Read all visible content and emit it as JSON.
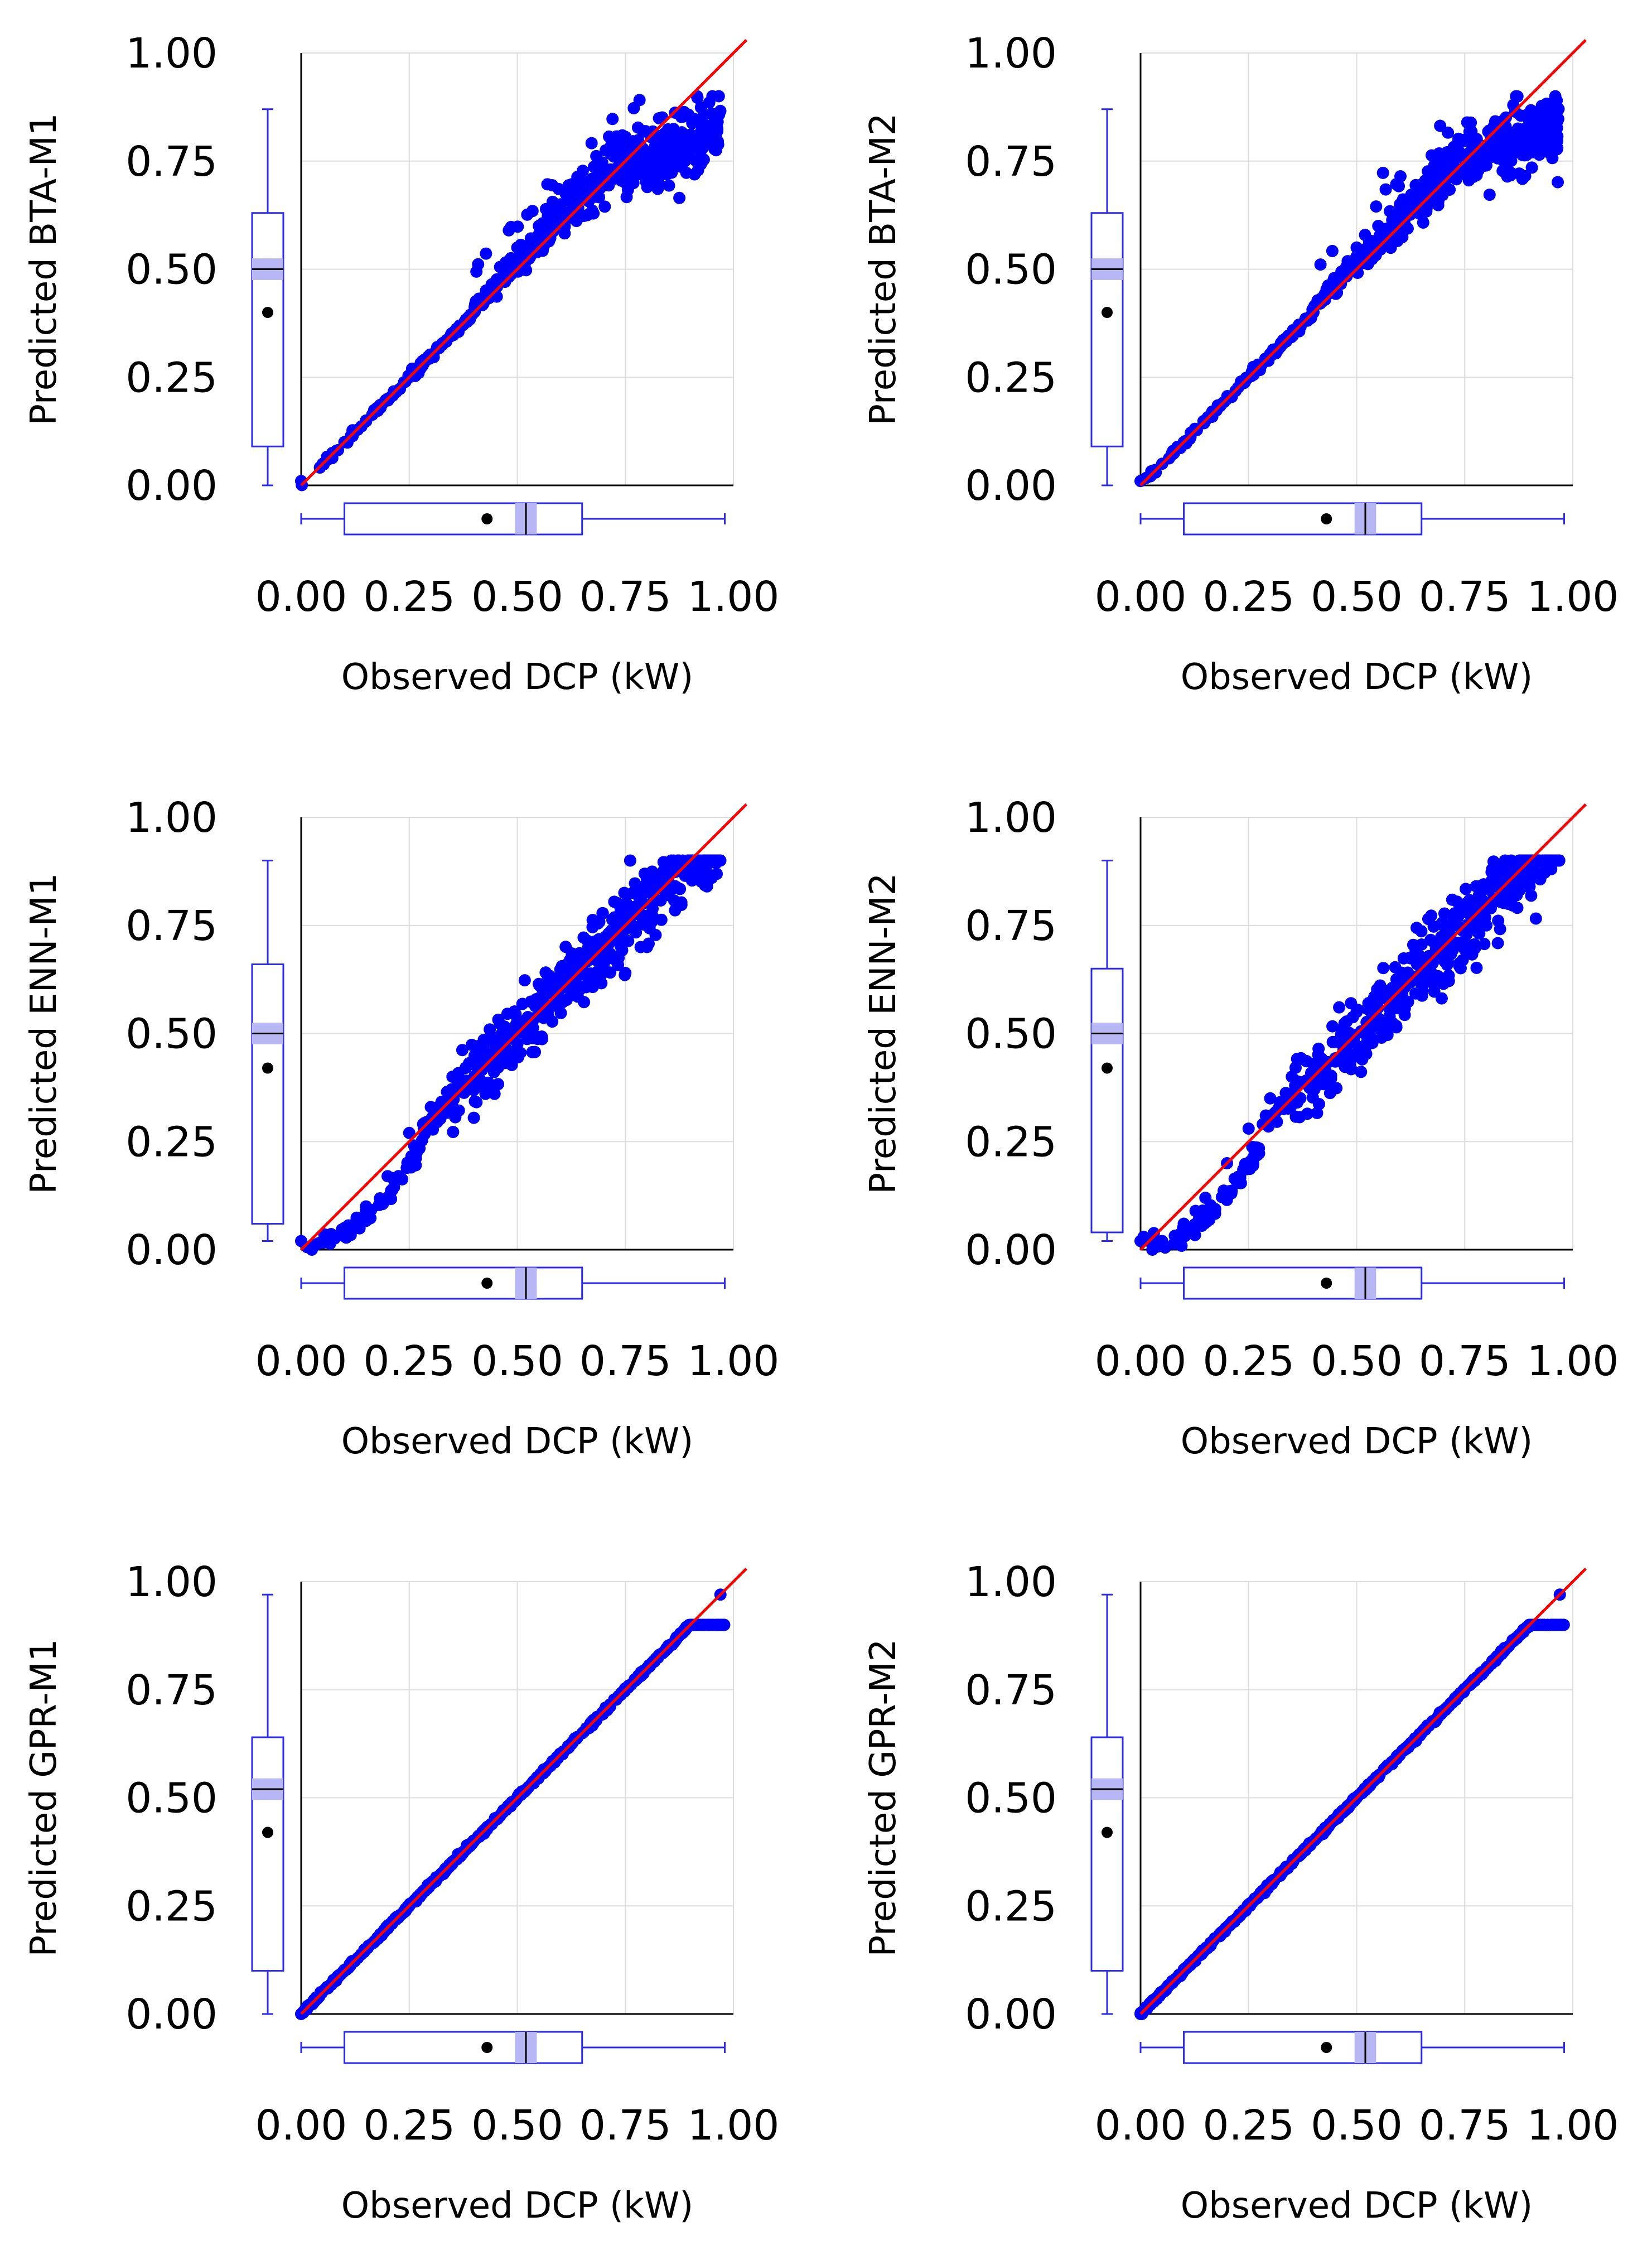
{
  "figure": {
    "x_label": "Observed DCP (kW)",
    "ticks": [
      "0.00",
      "0.25",
      "0.50",
      "0.75",
      "1.00"
    ]
  },
  "colors": {
    "points": "#0000ff",
    "fit_line": "#ff0000",
    "box_stroke": "#2b2bf0",
    "median_band": "#b7b7f5",
    "grid": "#dddddd"
  },
  "chart_data": [
    {
      "type": "scatter",
      "title": "",
      "xlabel": "Observed DCP (kW)",
      "ylabel": "Predicted BTA-M1",
      "xlim": [
        0,
        1
      ],
      "ylim": [
        0,
        1
      ],
      "xticks": [
        0,
        0.25,
        0.5,
        0.75,
        1.0
      ],
      "yticks": [
        0,
        0.25,
        0.5,
        0.75,
        1.0
      ],
      "reference_line": {
        "slope": 1,
        "intercept": 0,
        "color": "#ff0000"
      },
      "points_color": "#0000ff",
      "x_box": {
        "min": 0.0,
        "q1": 0.1,
        "median": 0.52,
        "q3": 0.65,
        "max": 0.98,
        "mean": 0.43
      },
      "y_box": {
        "min": 0.0,
        "q1": 0.09,
        "median": 0.5,
        "q3": 0.63,
        "max": 0.87,
        "mean": 0.4
      },
      "scatter_model": {
        "kind": "lowspread",
        "xmax": 0.97,
        "spread": 0.1,
        "plateau": 0.74
      },
      "points": [
        [
          0.0,
          0.01
        ],
        [
          0.05,
          0.05
        ],
        [
          0.1,
          0.1
        ],
        [
          0.15,
          0.15
        ],
        [
          0.2,
          0.2
        ],
        [
          0.25,
          0.25
        ],
        [
          0.3,
          0.3
        ],
        [
          0.35,
          0.35
        ],
        [
          0.4,
          0.4
        ],
        [
          0.45,
          0.47
        ],
        [
          0.5,
          0.55
        ],
        [
          0.55,
          0.6
        ],
        [
          0.6,
          0.65
        ],
        [
          0.65,
          0.68
        ],
        [
          0.7,
          0.72
        ],
        [
          0.75,
          0.7
        ],
        [
          0.8,
          0.72
        ],
        [
          0.85,
          0.75
        ],
        [
          0.9,
          0.78
        ],
        [
          0.95,
          0.86
        ]
      ]
    },
    {
      "type": "scatter",
      "title": "",
      "xlabel": "Observed DCP (kW)",
      "ylabel": "Predicted BTA-M2",
      "xlim": [
        0,
        1
      ],
      "ylim": [
        0,
        1
      ],
      "xticks": [
        0,
        0.25,
        0.5,
        0.75,
        1.0
      ],
      "yticks": [
        0,
        0.25,
        0.5,
        0.75,
        1.0
      ],
      "reference_line": {
        "slope": 1,
        "intercept": 0,
        "color": "#ff0000"
      },
      "points_color": "#0000ff",
      "x_box": {
        "min": 0.0,
        "q1": 0.1,
        "median": 0.52,
        "q3": 0.65,
        "max": 0.98,
        "mean": 0.43
      },
      "y_box": {
        "min": 0.0,
        "q1": 0.09,
        "median": 0.5,
        "q3": 0.63,
        "max": 0.87,
        "mean": 0.4
      },
      "scatter_model": {
        "kind": "lowspread",
        "xmax": 0.97,
        "spread": 0.1,
        "plateau": 0.75
      },
      "points": [
        [
          0.0,
          0.01
        ],
        [
          0.05,
          0.05
        ],
        [
          0.1,
          0.1
        ],
        [
          0.15,
          0.15
        ],
        [
          0.2,
          0.2
        ],
        [
          0.25,
          0.25
        ],
        [
          0.3,
          0.3
        ],
        [
          0.35,
          0.35
        ],
        [
          0.4,
          0.4
        ],
        [
          0.45,
          0.47
        ],
        [
          0.5,
          0.55
        ],
        [
          0.55,
          0.6
        ],
        [
          0.6,
          0.65
        ],
        [
          0.65,
          0.68
        ],
        [
          0.7,
          0.72
        ],
        [
          0.75,
          0.72
        ],
        [
          0.8,
          0.74
        ],
        [
          0.85,
          0.78
        ],
        [
          0.9,
          0.8
        ],
        [
          0.95,
          0.87
        ]
      ]
    },
    {
      "type": "scatter",
      "title": "",
      "xlabel": "Observed DCP (kW)",
      "ylabel": "Predicted ENN-M1",
      "xlim": [
        0,
        1
      ],
      "ylim": [
        0,
        1
      ],
      "xticks": [
        0,
        0.25,
        0.5,
        0.75,
        1.0
      ],
      "yticks": [
        0,
        0.25,
        0.5,
        0.75,
        1.0
      ],
      "reference_line": {
        "slope": 1,
        "intercept": 0,
        "color": "#ff0000"
      },
      "points_color": "#0000ff",
      "x_box": {
        "min": 0.0,
        "q1": 0.1,
        "median": 0.52,
        "q3": 0.65,
        "max": 0.98,
        "mean": 0.43
      },
      "y_box": {
        "min": 0.02,
        "q1": 0.06,
        "median": 0.5,
        "q3": 0.66,
        "max": 0.9,
        "mean": 0.42
      },
      "scatter_model": {
        "kind": "scurve",
        "xmax": 0.97,
        "spread": 0.12
      },
      "points": [
        [
          0.0,
          0.02
        ],
        [
          0.05,
          0.02
        ],
        [
          0.1,
          0.05
        ],
        [
          0.15,
          0.1
        ],
        [
          0.2,
          0.17
        ],
        [
          0.25,
          0.27
        ],
        [
          0.3,
          0.33
        ],
        [
          0.35,
          0.4
        ],
        [
          0.4,
          0.44
        ],
        [
          0.45,
          0.47
        ],
        [
          0.5,
          0.5
        ],
        [
          0.55,
          0.58
        ],
        [
          0.6,
          0.62
        ],
        [
          0.65,
          0.64
        ],
        [
          0.7,
          0.66
        ],
        [
          0.75,
          0.64
        ],
        [
          0.8,
          0.7
        ],
        [
          0.85,
          0.82
        ],
        [
          0.9,
          0.88
        ],
        [
          0.95,
          0.86
        ]
      ]
    },
    {
      "type": "scatter",
      "title": "",
      "xlabel": "Observed DCP (kW)",
      "ylabel": "Predicted ENN-M2",
      "xlim": [
        0,
        1
      ],
      "ylim": [
        0,
        1
      ],
      "xticks": [
        0,
        0.25,
        0.5,
        0.75,
        1.0
      ],
      "yticks": [
        0,
        0.25,
        0.5,
        0.75,
        1.0
      ],
      "reference_line": {
        "slope": 1,
        "intercept": 0,
        "color": "#ff0000"
      },
      "points_color": "#0000ff",
      "x_box": {
        "min": 0.0,
        "q1": 0.1,
        "median": 0.52,
        "q3": 0.65,
        "max": 0.98,
        "mean": 0.43
      },
      "y_box": {
        "min": 0.02,
        "q1": 0.04,
        "median": 0.5,
        "q3": 0.65,
        "max": 0.9,
        "mean": 0.42
      },
      "scatter_model": {
        "kind": "scurve",
        "xmax": 0.97,
        "spread": 0.14
      },
      "points": [
        [
          0.0,
          0.02
        ],
        [
          0.05,
          0.02
        ],
        [
          0.1,
          0.06
        ],
        [
          0.15,
          0.12
        ],
        [
          0.2,
          0.2
        ],
        [
          0.25,
          0.28
        ],
        [
          0.3,
          0.35
        ],
        [
          0.35,
          0.4
        ],
        [
          0.4,
          0.43
        ],
        [
          0.45,
          0.48
        ],
        [
          0.5,
          0.55
        ],
        [
          0.55,
          0.6
        ],
        [
          0.6,
          0.62
        ],
        [
          0.65,
          0.67
        ],
        [
          0.7,
          0.68
        ],
        [
          0.75,
          0.7
        ],
        [
          0.8,
          0.75
        ],
        [
          0.85,
          0.8
        ],
        [
          0.9,
          0.84
        ],
        [
          0.95,
          0.88
        ]
      ]
    },
    {
      "type": "scatter",
      "title": "",
      "xlabel": "Observed DCP (kW)",
      "ylabel": "Predicted GPR-M1",
      "xlim": [
        0,
        1
      ],
      "ylim": [
        0,
        1
      ],
      "xticks": [
        0,
        0.25,
        0.5,
        0.75,
        1.0
      ],
      "yticks": [
        0,
        0.25,
        0.5,
        0.75,
        1.0
      ],
      "reference_line": {
        "slope": 1,
        "intercept": 0,
        "color": "#ff0000"
      },
      "points_color": "#0000ff",
      "x_box": {
        "min": 0.0,
        "q1": 0.1,
        "median": 0.52,
        "q3": 0.65,
        "max": 0.98,
        "mean": 0.43
      },
      "y_box": {
        "min": 0.0,
        "q1": 0.1,
        "median": 0.52,
        "q3": 0.64,
        "max": 0.97,
        "mean": 0.42
      },
      "scatter_model": {
        "kind": "identity",
        "xmax": 0.98,
        "spread": 0.0
      },
      "points": [
        [
          0.0,
          0.0
        ],
        [
          0.1,
          0.1
        ],
        [
          0.2,
          0.2
        ],
        [
          0.3,
          0.3
        ],
        [
          0.4,
          0.4
        ],
        [
          0.5,
          0.5
        ],
        [
          0.6,
          0.6
        ],
        [
          0.7,
          0.7
        ],
        [
          0.8,
          0.8
        ],
        [
          0.9,
          0.9
        ],
        [
          0.97,
          0.97
        ]
      ]
    },
    {
      "type": "scatter",
      "title": "",
      "xlabel": "Observed DCP (kW)",
      "ylabel": "Predicted GPR-M2",
      "xlim": [
        0,
        1
      ],
      "ylim": [
        0,
        1
      ],
      "xticks": [
        0,
        0.25,
        0.5,
        0.75,
        1.0
      ],
      "yticks": [
        0,
        0.25,
        0.5,
        0.75,
        1.0
      ],
      "reference_line": {
        "slope": 1,
        "intercept": 0,
        "color": "#ff0000"
      },
      "points_color": "#0000ff",
      "x_box": {
        "min": 0.0,
        "q1": 0.1,
        "median": 0.52,
        "q3": 0.65,
        "max": 0.98,
        "mean": 0.43
      },
      "y_box": {
        "min": 0.0,
        "q1": 0.1,
        "median": 0.52,
        "q3": 0.64,
        "max": 0.97,
        "mean": 0.42
      },
      "scatter_model": {
        "kind": "identity",
        "xmax": 0.98,
        "spread": 0.0
      },
      "points": [
        [
          0.0,
          0.0
        ],
        [
          0.1,
          0.1
        ],
        [
          0.2,
          0.2
        ],
        [
          0.3,
          0.3
        ],
        [
          0.4,
          0.4
        ],
        [
          0.5,
          0.5
        ],
        [
          0.6,
          0.6
        ],
        [
          0.7,
          0.7
        ],
        [
          0.8,
          0.8
        ],
        [
          0.9,
          0.9
        ],
        [
          0.97,
          0.97
        ]
      ]
    }
  ]
}
